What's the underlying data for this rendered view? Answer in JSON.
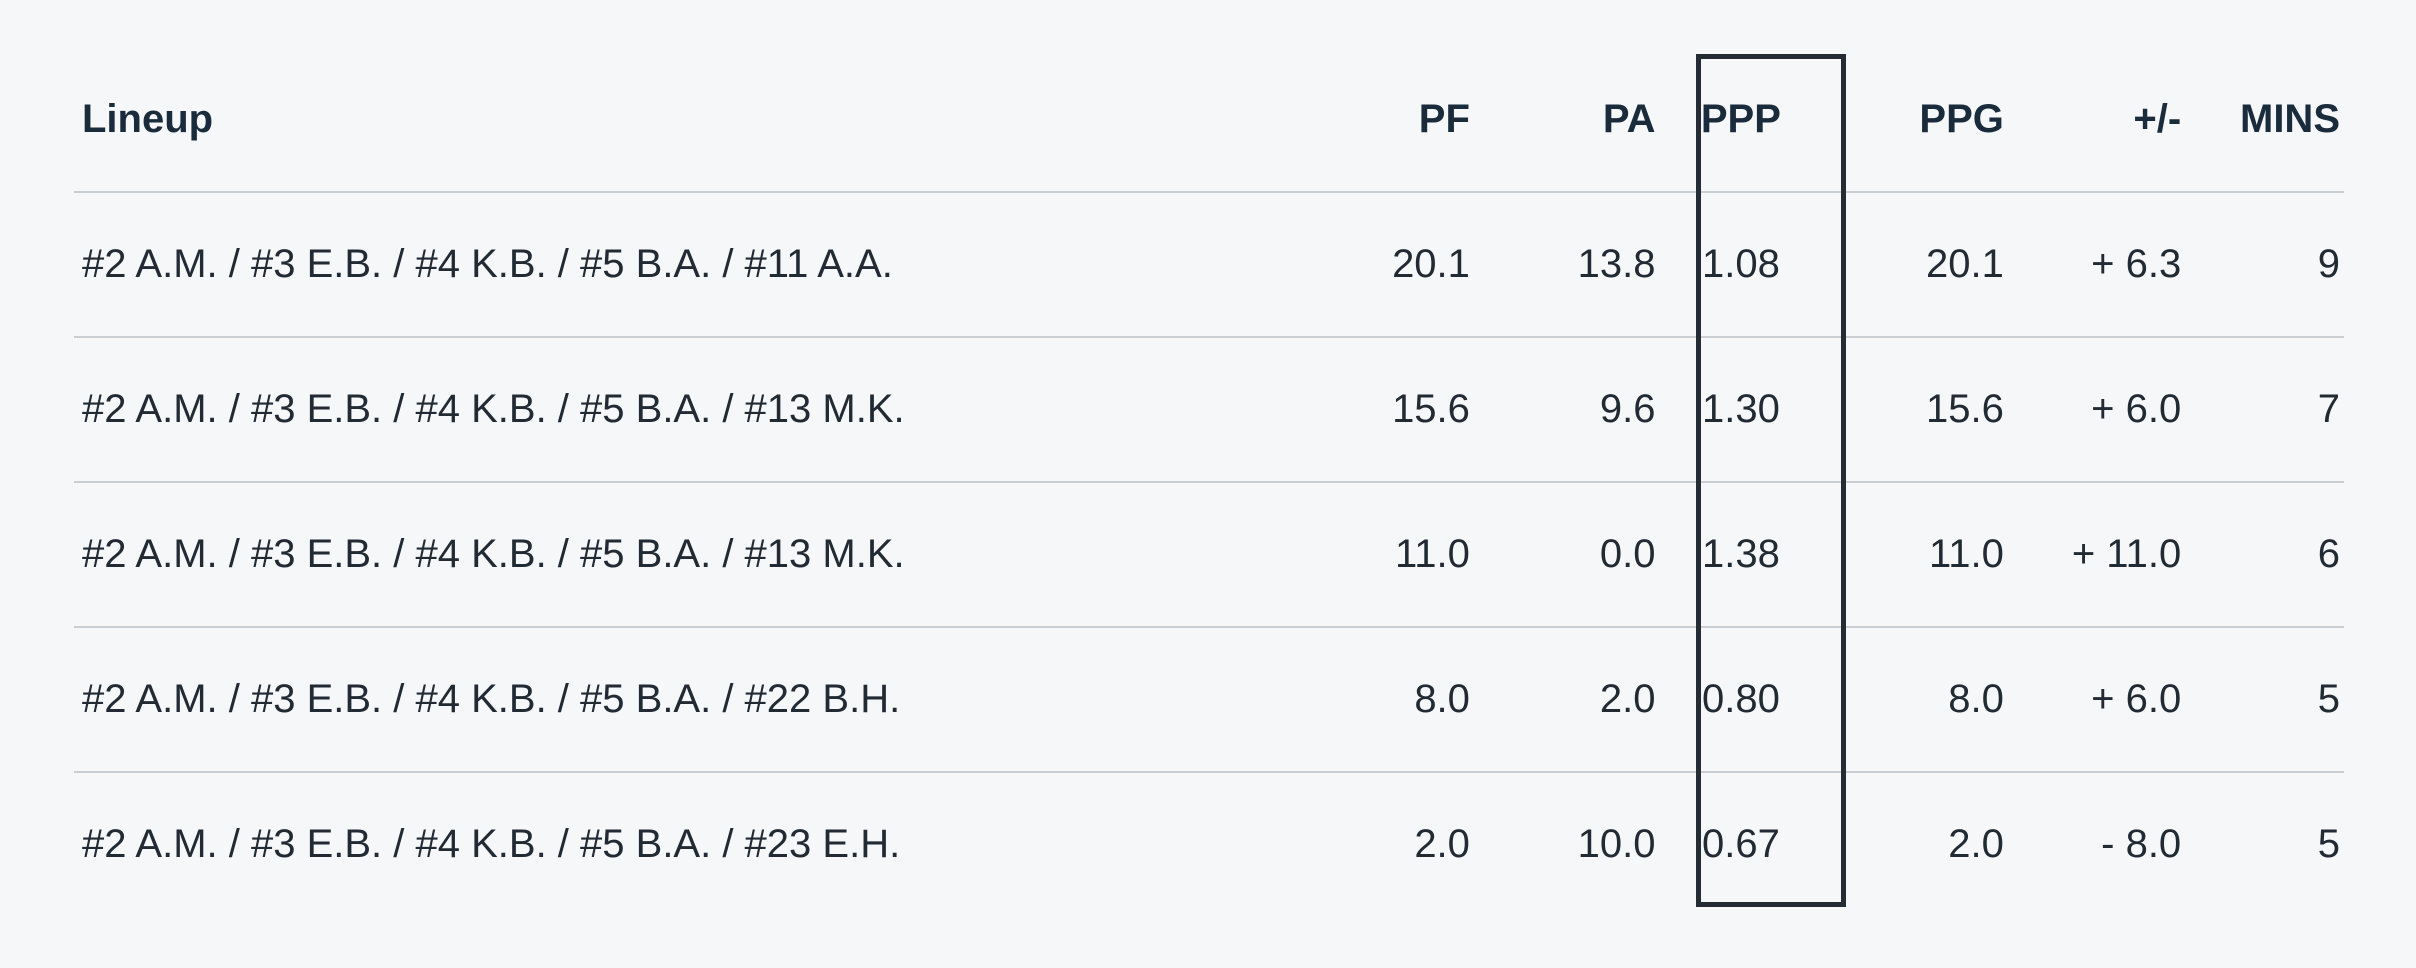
{
  "table": {
    "headers": {
      "lineup": "Lineup",
      "pf": "PF",
      "pa": "PA",
      "ppp": "PPP",
      "ppg": "PPG",
      "plus_minus": "+/-",
      "mins": "MINS"
    },
    "highlighted_column": "PPP",
    "rows": [
      {
        "lineup": "#2 A.M. / #3 E.B. / #4 K.B. / #5 B.A. / #11 A.A.",
        "pf": "20.1",
        "pa": "13.8",
        "ppp": "1.08",
        "ppg": "20.1",
        "plus_minus": "+ 6.3",
        "mins": "9"
      },
      {
        "lineup": "#2 A.M. / #3 E.B. / #4 K.B. / #5 B.A. / #13 M.K.",
        "pf": "15.6",
        "pa": "9.6",
        "ppp": "1.30",
        "ppg": "15.6",
        "plus_minus": "+ 6.0",
        "mins": "7"
      },
      {
        "lineup": "#2 A.M. / #3 E.B. / #4 K.B. / #5 B.A. / #13 M.K.",
        "pf": "11.0",
        "pa": "0.0",
        "ppp": "1.38",
        "ppg": "11.0",
        "plus_minus": "+ 11.0",
        "mins": "6"
      },
      {
        "lineup": "#2 A.M. / #3 E.B. / #4 K.B. / #5 B.A. / #22 B.H.",
        "pf": "8.0",
        "pa": "2.0",
        "ppp": "0.80",
        "ppg": "8.0",
        "plus_minus": "+ 6.0",
        "mins": "5"
      },
      {
        "lineup": "#2 A.M. / #3 E.B. / #4 K.B. / #5 B.A. / #23 E.H.",
        "pf": "2.0",
        "pa": "10.0",
        "ppp": "0.67",
        "ppg": "2.0",
        "plus_minus": "- 8.0",
        "mins": "5"
      }
    ]
  }
}
